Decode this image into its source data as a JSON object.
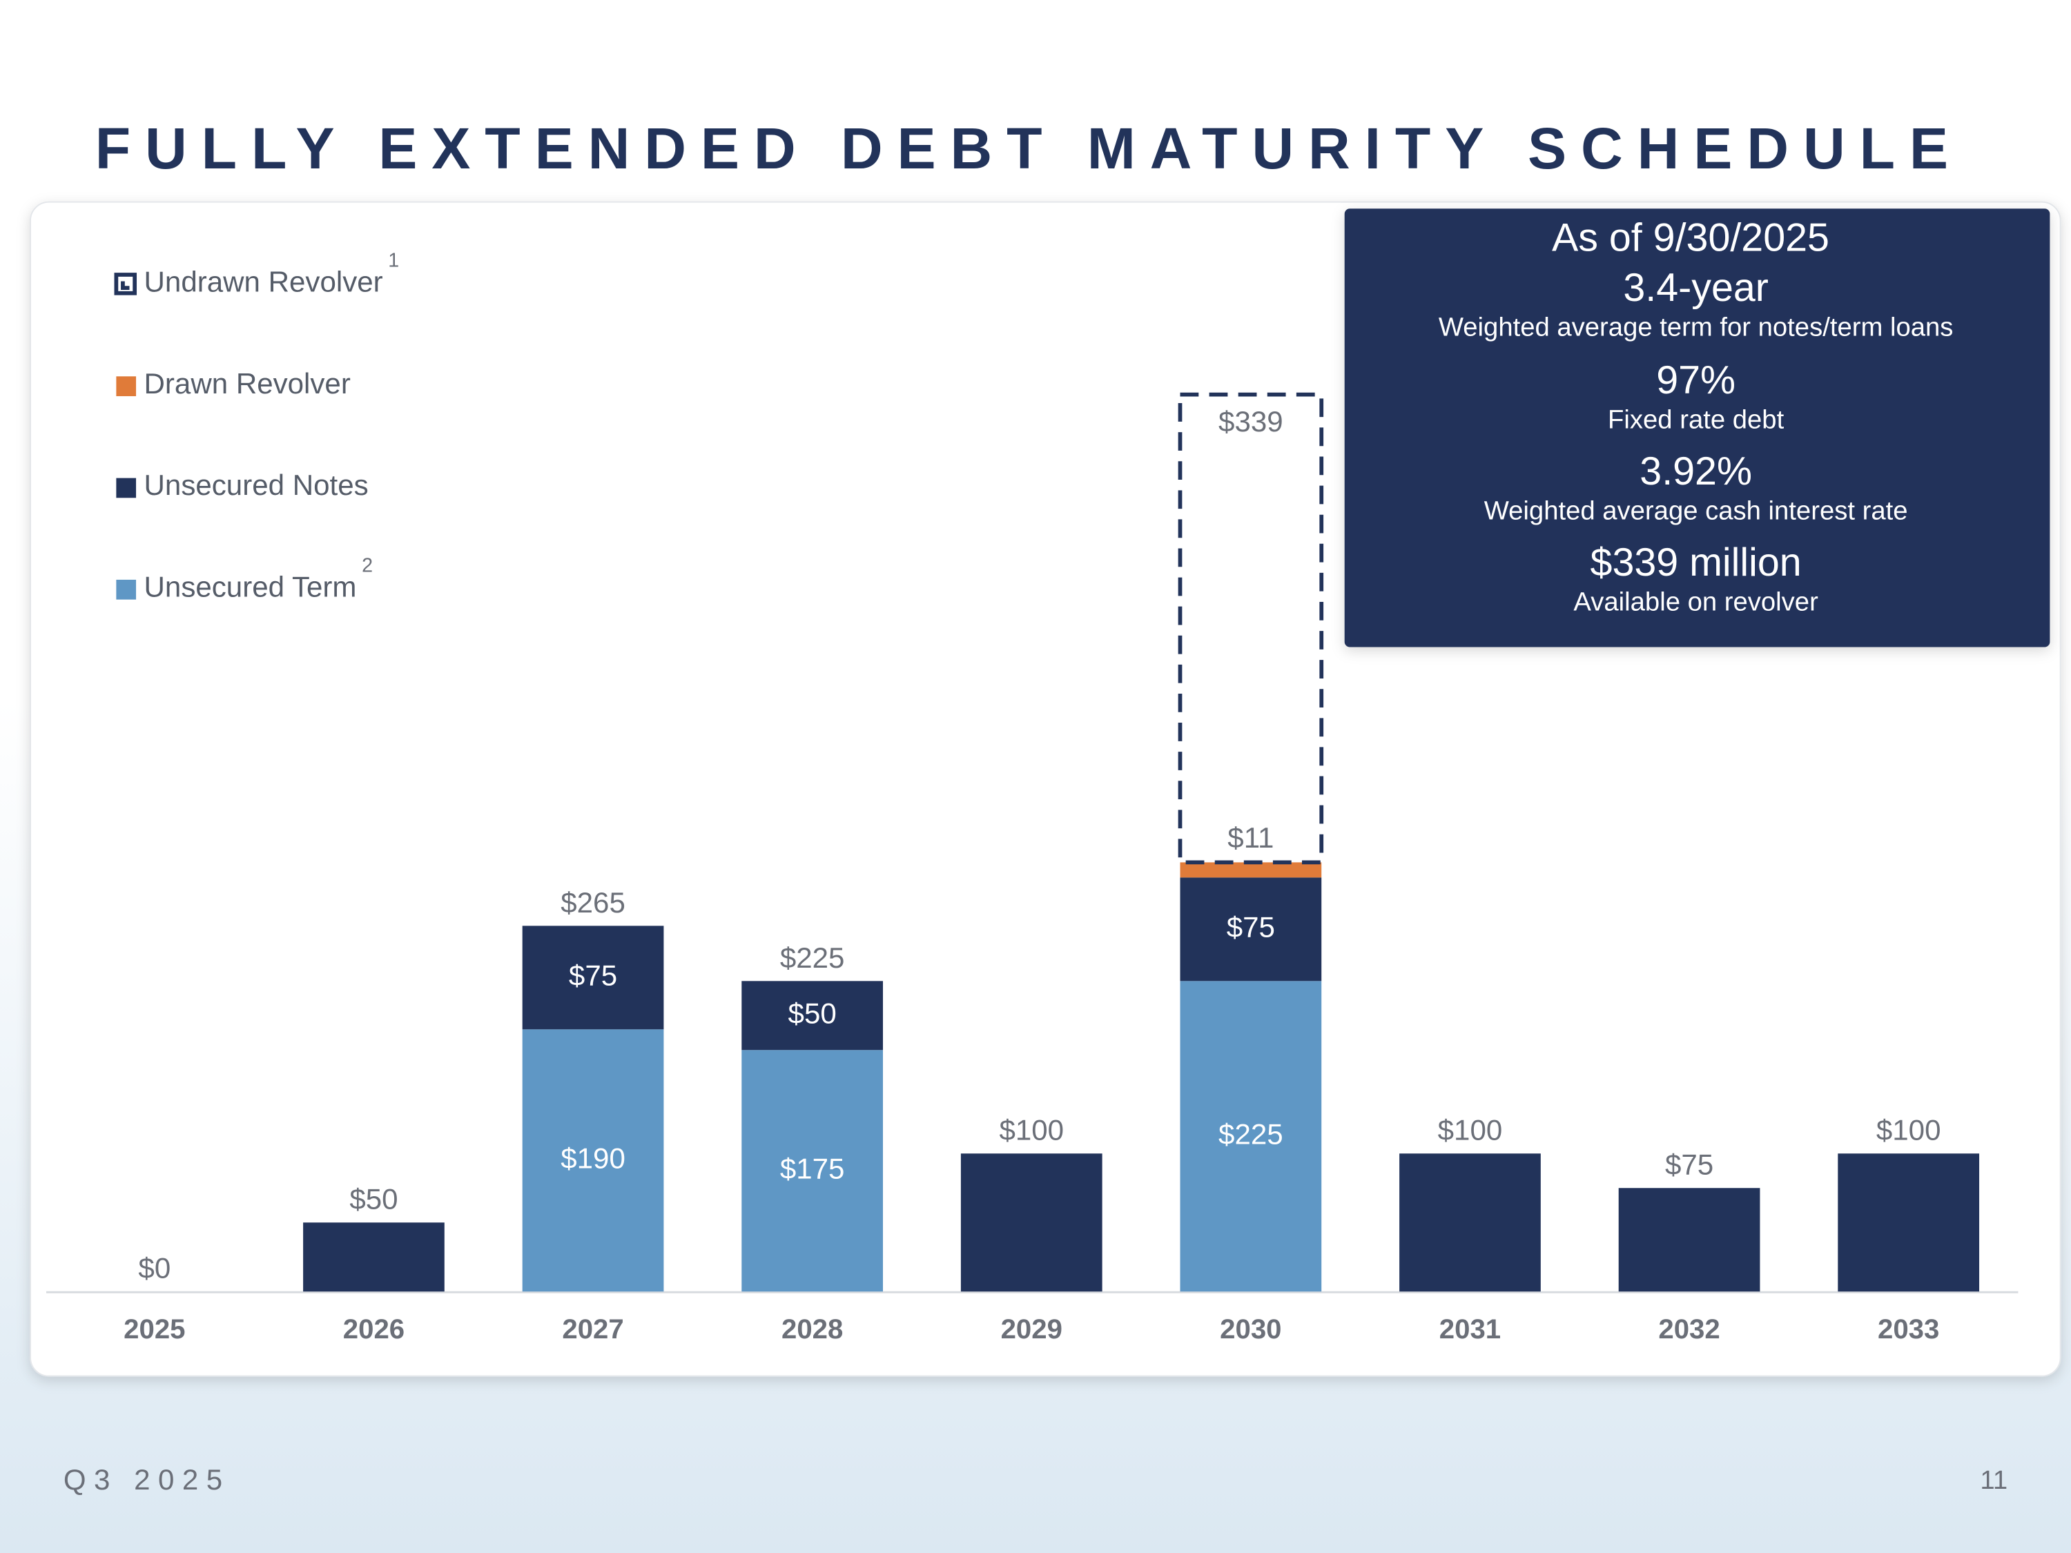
{
  "chart_data": {
    "type": "stacked_bar",
    "title": "FULLY EXTENDED DEBT MATURITY SCHEDULE",
    "categories": [
      "2025",
      "2026",
      "2027",
      "2028",
      "2029",
      "2030",
      "2031",
      "2032",
      "2033"
    ],
    "series": [
      {
        "name": "Unsecured Term",
        "footnote": "2",
        "color": "#5f97c5",
        "values": [
          null,
          null,
          190,
          175,
          null,
          225,
          null,
          null,
          null
        ],
        "value_labels": [
          null,
          null,
          "$190",
          "$175",
          null,
          "$225",
          null,
          null,
          null
        ]
      },
      {
        "name": "Unsecured Notes",
        "color": "#22335a",
        "values": [
          null,
          50,
          75,
          50,
          100,
          75,
          100,
          75,
          100
        ],
        "value_labels": [
          null,
          null,
          "$75",
          "$50",
          null,
          "$75",
          null,
          null,
          null
        ]
      },
      {
        "name": "Drawn Revolver",
        "color": "#e07b39",
        "values": [
          null,
          null,
          null,
          null,
          null,
          11,
          null,
          null,
          null
        ],
        "value_labels": [
          null,
          null,
          null,
          null,
          null,
          "$11",
          null,
          null,
          null
        ]
      },
      {
        "name": "Undrawn Revolver",
        "footnote": "1",
        "color": "#22335a",
        "style": "dashed-outline",
        "values": [
          null,
          null,
          null,
          null,
          null,
          339,
          null,
          null,
          null
        ],
        "value_labels": [
          null,
          null,
          null,
          null,
          null,
          "$339",
          null,
          null,
          null
        ]
      }
    ],
    "totals": [
      0,
      50,
      265,
      225,
      100,
      null,
      100,
      75,
      100
    ],
    "total_labels": [
      "$0",
      "$50",
      "$265",
      "$225",
      "$100",
      null,
      "$100",
      "$75",
      "$100"
    ]
  },
  "info_box": {
    "heading": "As of 9/30/2025",
    "items": [
      {
        "value": "3.4-year",
        "caption": "Weighted average term for notes/term loans"
      },
      {
        "value": "97%",
        "caption": "Fixed rate debt"
      },
      {
        "value": "3.92%",
        "caption": "Weighted average cash interest rate"
      },
      {
        "value": "$339 million",
        "caption": "Available on revolver"
      }
    ]
  },
  "footer": {
    "period": "Q3 2025",
    "page": "11"
  }
}
